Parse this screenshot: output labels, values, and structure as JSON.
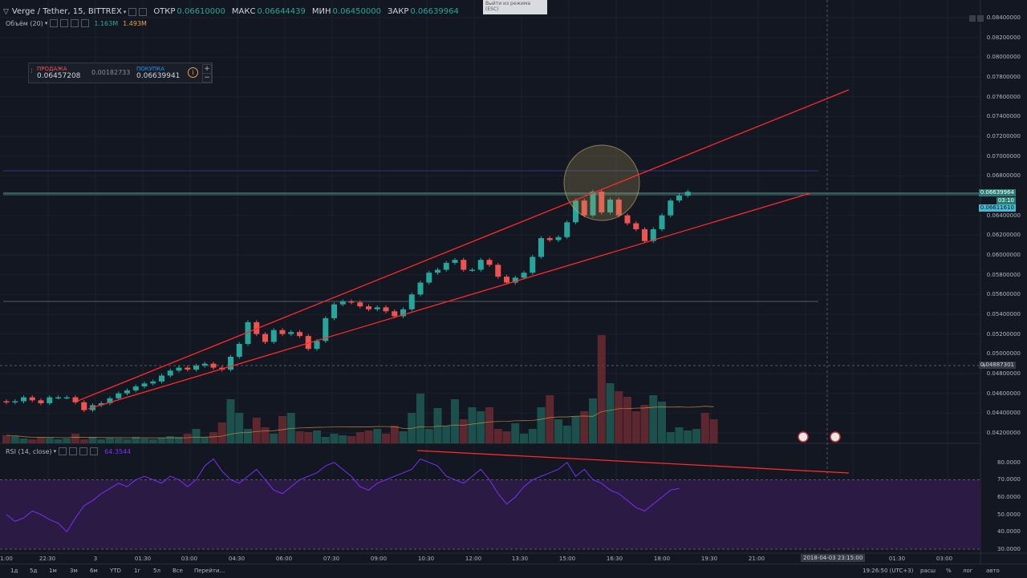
{
  "header": {
    "symbol": "Verge / Tether, 15, BITTREX",
    "open_label": "ОТКР",
    "open": "0.06610000",
    "high_label": "МАКС",
    "high": "0.06644439",
    "low_label": "МИН",
    "low": "0.06450000",
    "close_label": "ЗАКР",
    "close": "0.06639964"
  },
  "volume_indicator": {
    "name": "Объём (20)",
    "v1": "1.163M",
    "v2": "1.493M"
  },
  "trade_panel": {
    "sell_label": "ПРОДАЖА",
    "sell_price": "0.06457208",
    "spread": "0.00182733",
    "buy_label": "ПОКУПКА",
    "buy_price": "0.06639941",
    "info_icon": "info-icon"
  },
  "tooltip": {
    "line1": "Выйти из режима",
    "line2": "(ESC)"
  },
  "price_axis": [
    "0.08400000",
    "0.08200000",
    "0.08000000",
    "0.07800000",
    "0.07600000",
    "0.07400000",
    "0.07200000",
    "0.07000000",
    "0.06800000",
    "0.06400000",
    "0.06200000",
    "0.06000000",
    "0.05800000",
    "0.05600000",
    "0.05400000",
    "0.05200000",
    "0.05000000",
    "0.04800000",
    "0.04600000",
    "0.04400000",
    "0.04200000"
  ],
  "price_tags": {
    "last": "0.06639964",
    "countdown": "03:10",
    "other": "0.06611610",
    "crosshair": "0.04887301"
  },
  "rsi": {
    "name": "RSI (14, close)",
    "value": "64.3544",
    "axis": [
      "80.0000",
      "70.0000",
      "60.0000",
      "50.0000",
      "40.0000",
      "30.0000"
    ]
  },
  "time_axis": [
    "1:00",
    "22:30",
    "3",
    "01:30",
    "03:00",
    "04:30",
    "06:00",
    "07:30",
    "09:00",
    "10:30",
    "12:00",
    "13:30",
    "15:00",
    "16:30",
    "18:00",
    "19:30",
    "21:00",
    "01:30",
    "03:00"
  ],
  "time_highlight": "2018-04-03 23:15:00",
  "bottom_bar": {
    "ranges": [
      "1д",
      "5д",
      "1м",
      "3м",
      "6м",
      "YTD",
      "1г",
      "5л",
      "Все",
      "Перейти..."
    ],
    "clock": "19:26:50 (UTC+3)",
    "options": [
      "расш",
      "%",
      "лог",
      "авто"
    ]
  },
  "colors": {
    "up": "#26a69a",
    "down": "#ef5350",
    "trend": "#ff2a2a",
    "rsi": "#7b2ff7",
    "bg": "#131722"
  }
}
